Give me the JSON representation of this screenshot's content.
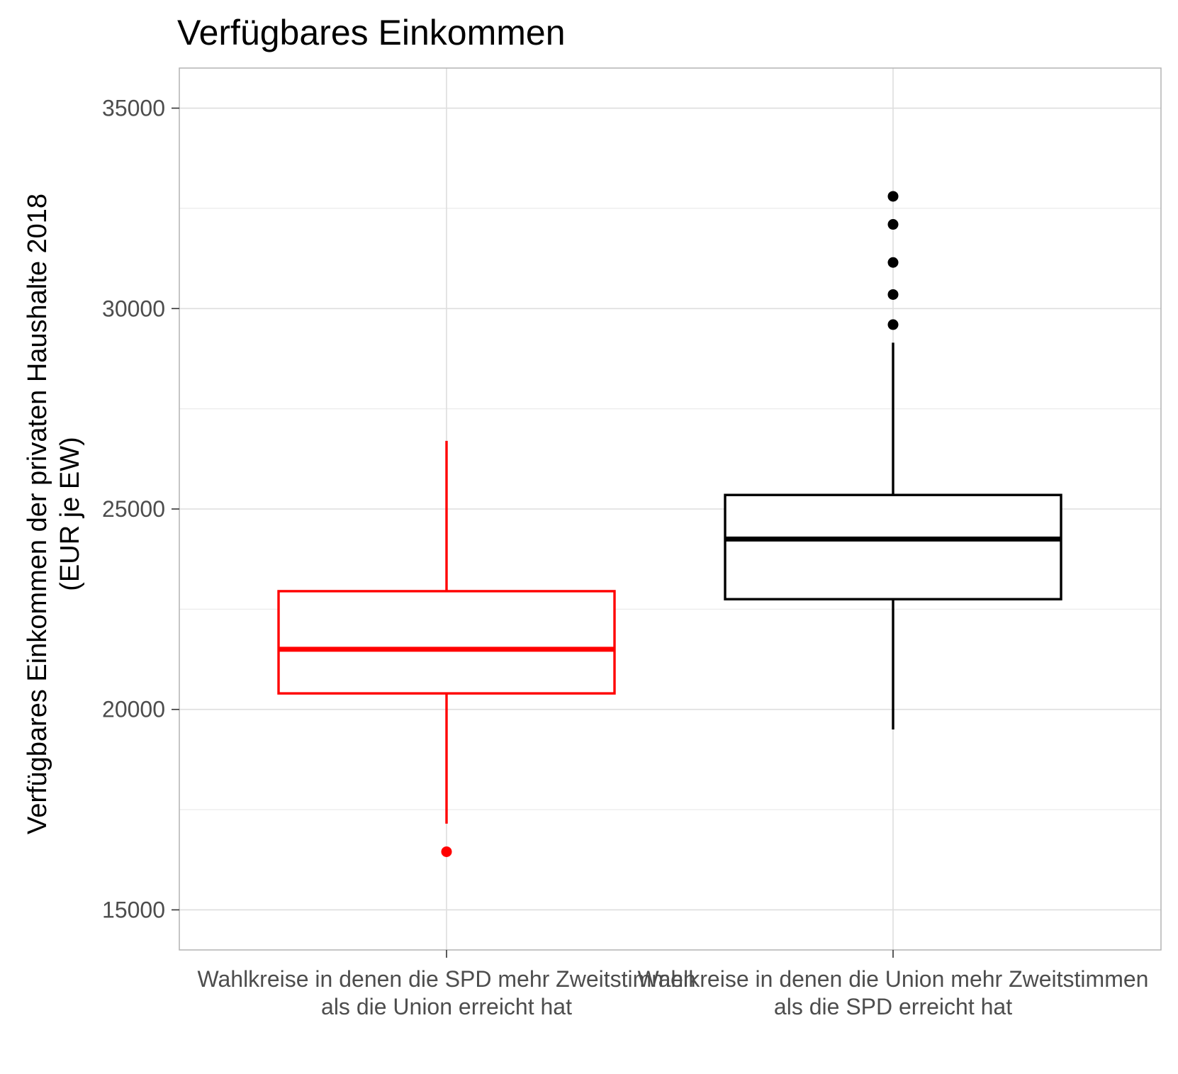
{
  "chart_data": {
    "type": "boxplot",
    "title": "Verfügbares Einkommen",
    "ylabel_lines": [
      "Verfügbares Einkommen der privaten Haushalte 2018",
      "(EUR je EW)"
    ],
    "xlabel": "",
    "ylim": [
      14000,
      36000
    ],
    "yticks": [
      15000,
      20000,
      25000,
      30000,
      35000
    ],
    "grid": true,
    "legend": "none",
    "groups": [
      {
        "label_lines": [
          "Wahlkreise in denen die SPD mehr Zweitstimmen",
          "als die Union erreicht hat"
        ],
        "color": "#ff0000",
        "whisker_low": 17150,
        "q1": 20400,
        "median": 21500,
        "q3": 22950,
        "whisker_high": 26700,
        "outliers": [
          16450
        ]
      },
      {
        "label_lines": [
          "Wahlkreise in denen die Union mehr Zweitstimmen",
          "als die SPD erreicht hat"
        ],
        "color": "#000000",
        "whisker_low": 19500,
        "q1": 22750,
        "median": 24250,
        "q3": 25350,
        "whisker_high": 29150,
        "outliers": [
          29600,
          30350,
          31150,
          32100,
          32800
        ]
      }
    ]
  }
}
